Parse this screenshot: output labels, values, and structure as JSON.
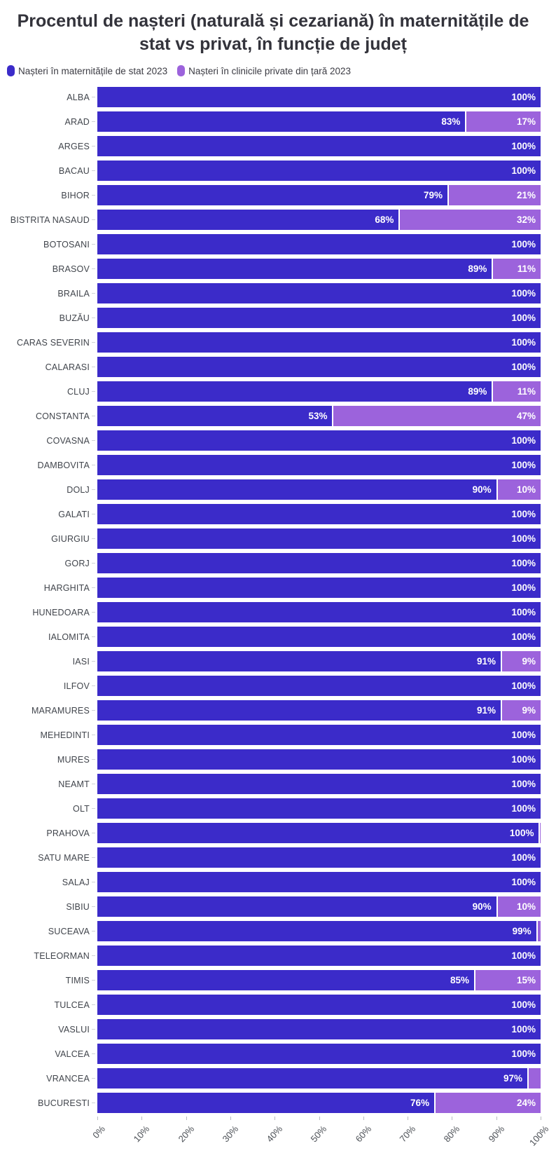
{
  "title": "Procentul de nașteri (naturală și cezariană) în maternitățile de stat vs privat, în funcție de județ",
  "legend": {
    "items": [
      {
        "label": "Nașteri în maternitățile de stat 2023",
        "color": "#3b2bc9"
      },
      {
        "label": "Nașteri în clinicile private din țară 2023",
        "color": "#9c63dc"
      }
    ]
  },
  "chart_data": {
    "type": "bar",
    "orientation": "horizontal",
    "stacked": true,
    "unit": "percent",
    "xlim": [
      0,
      100
    ],
    "grid": false,
    "legend_position": "top-left",
    "x_ticks": [
      "0%",
      "10%",
      "20%",
      "30%",
      "40%",
      "50%",
      "60%",
      "70%",
      "80%",
      "90%",
      "100%"
    ],
    "series": [
      {
        "name": "Nașteri în maternitățile de stat 2023",
        "color": "#3b2bc9"
      },
      {
        "name": "Nașteri în clinicile private din țară 2023",
        "color": "#9c63dc"
      }
    ],
    "rows": [
      {
        "label": "ALBA",
        "stat": 100,
        "private": 0,
        "stat_label": "100%",
        "private_label": ""
      },
      {
        "label": "ARAD",
        "stat": 83,
        "private": 17,
        "stat_label": "83%",
        "private_label": "17%"
      },
      {
        "label": "ARGES",
        "stat": 100,
        "private": 0,
        "stat_label": "100%",
        "private_label": ""
      },
      {
        "label": "BACAU",
        "stat": 100,
        "private": 0,
        "stat_label": "100%",
        "private_label": ""
      },
      {
        "label": "BIHOR",
        "stat": 79,
        "private": 21,
        "stat_label": "79%",
        "private_label": "21%"
      },
      {
        "label": "BISTRITA NASAUD",
        "stat": 68,
        "private": 32,
        "stat_label": "68%",
        "private_label": "32%"
      },
      {
        "label": "BOTOSANI",
        "stat": 100,
        "private": 0,
        "stat_label": "100%",
        "private_label": ""
      },
      {
        "label": "BRASOV",
        "stat": 89,
        "private": 11,
        "stat_label": "89%",
        "private_label": "11%"
      },
      {
        "label": "BRAILA",
        "stat": 100,
        "private": 0,
        "stat_label": "100%",
        "private_label": ""
      },
      {
        "label": "BUZĂU",
        "stat": 100,
        "private": 0,
        "stat_label": "100%",
        "private_label": ""
      },
      {
        "label": "CARAS SEVERIN",
        "stat": 100,
        "private": 0,
        "stat_label": "100%",
        "private_label": ""
      },
      {
        "label": "CALARASI",
        "stat": 100,
        "private": 0,
        "stat_label": "100%",
        "private_label": ""
      },
      {
        "label": "CLUJ",
        "stat": 89,
        "private": 11,
        "stat_label": "89%",
        "private_label": "11%"
      },
      {
        "label": "CONSTANTA",
        "stat": 53,
        "private": 47,
        "stat_label": "53%",
        "private_label": "47%"
      },
      {
        "label": "COVASNA",
        "stat": 100,
        "private": 0,
        "stat_label": "100%",
        "private_label": ""
      },
      {
        "label": "DAMBOVITA",
        "stat": 100,
        "private": 0,
        "stat_label": "100%",
        "private_label": ""
      },
      {
        "label": "DOLJ",
        "stat": 90,
        "private": 10,
        "stat_label": "90%",
        "private_label": "10%"
      },
      {
        "label": "GALATI",
        "stat": 100,
        "private": 0,
        "stat_label": "100%",
        "private_label": ""
      },
      {
        "label": "GIURGIU",
        "stat": 100,
        "private": 0,
        "stat_label": "100%",
        "private_label": ""
      },
      {
        "label": "GORJ",
        "stat": 100,
        "private": 0,
        "stat_label": "100%",
        "private_label": ""
      },
      {
        "label": "HARGHITA",
        "stat": 100,
        "private": 0,
        "stat_label": "100%",
        "private_label": ""
      },
      {
        "label": "HUNEDOARA",
        "stat": 100,
        "private": 0,
        "stat_label": "100%",
        "private_label": ""
      },
      {
        "label": "IALOMITA",
        "stat": 100,
        "private": 0,
        "stat_label": "100%",
        "private_label": ""
      },
      {
        "label": "IASI",
        "stat": 91,
        "private": 9,
        "stat_label": "91%",
        "private_label": "9%"
      },
      {
        "label": "ILFOV",
        "stat": 100,
        "private": 0,
        "stat_label": "100%",
        "private_label": ""
      },
      {
        "label": "MARAMURES",
        "stat": 91,
        "private": 9,
        "stat_label": "91%",
        "private_label": "9%"
      },
      {
        "label": "MEHEDINTI",
        "stat": 100,
        "private": 0,
        "stat_label": "100%",
        "private_label": ""
      },
      {
        "label": "MURES",
        "stat": 100,
        "private": 0,
        "stat_label": "100%",
        "private_label": ""
      },
      {
        "label": "NEAMT",
        "stat": 100,
        "private": 0,
        "stat_label": "100%",
        "private_label": ""
      },
      {
        "label": "OLT",
        "stat": 100,
        "private": 0,
        "stat_label": "100%",
        "private_label": ""
      },
      {
        "label": "PRAHOVA",
        "stat": 99.6,
        "private": 0.4,
        "stat_label": "100%",
        "private_label": ""
      },
      {
        "label": "SATU MARE",
        "stat": 100,
        "private": 0,
        "stat_label": "100%",
        "private_label": ""
      },
      {
        "label": "SALAJ",
        "stat": 100,
        "private": 0,
        "stat_label": "100%",
        "private_label": ""
      },
      {
        "label": "SIBIU",
        "stat": 90,
        "private": 10,
        "stat_label": "90%",
        "private_label": "10%"
      },
      {
        "label": "SUCEAVA",
        "stat": 99,
        "private": 1,
        "stat_label": "99%",
        "private_label": ""
      },
      {
        "label": "TELEORMAN",
        "stat": 100,
        "private": 0,
        "stat_label": "100%",
        "private_label": ""
      },
      {
        "label": "TIMIS",
        "stat": 85,
        "private": 15,
        "stat_label": "85%",
        "private_label": "15%"
      },
      {
        "label": "TULCEA",
        "stat": 100,
        "private": 0,
        "stat_label": "100%",
        "private_label": ""
      },
      {
        "label": "VASLUI",
        "stat": 100,
        "private": 0,
        "stat_label": "100%",
        "private_label": ""
      },
      {
        "label": "VALCEA",
        "stat": 100,
        "private": 0,
        "stat_label": "100%",
        "private_label": ""
      },
      {
        "label": "VRANCEA",
        "stat": 97,
        "private": 3,
        "stat_label": "97%",
        "private_label": ""
      },
      {
        "label": "BUCURESTI",
        "stat": 76,
        "private": 24,
        "stat_label": "76%",
        "private_label": "24%"
      }
    ]
  }
}
